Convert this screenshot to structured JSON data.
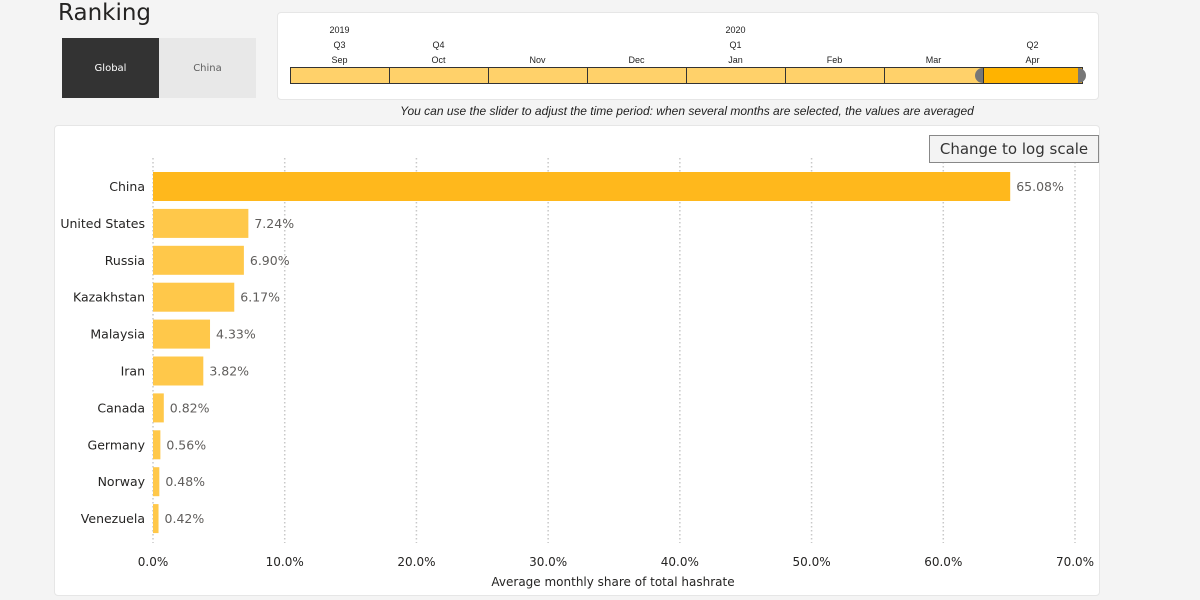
{
  "header": {
    "title": "Ranking"
  },
  "toggles": [
    {
      "label": "Global",
      "active": true
    },
    {
      "label": "China",
      "active": false
    }
  ],
  "timeline": {
    "months": [
      {
        "label": "Sep",
        "year": "2019",
        "quarter": "Q3",
        "selected": false
      },
      {
        "label": "Oct",
        "year": "",
        "quarter": "Q4",
        "selected": false
      },
      {
        "label": "Nov",
        "year": "",
        "quarter": "",
        "selected": false
      },
      {
        "label": "Dec",
        "year": "",
        "quarter": "",
        "selected": false
      },
      {
        "label": "Jan",
        "year": "2020",
        "quarter": "Q1",
        "selected": false
      },
      {
        "label": "Feb",
        "year": "",
        "quarter": "",
        "selected": false
      },
      {
        "label": "Mar",
        "year": "",
        "quarter": "",
        "selected": false
      },
      {
        "label": "Apr",
        "year": "",
        "quarter": "Q2",
        "selected": true
      }
    ],
    "caption": "You can use the slider to adjust the time period: when several months are selected, the values are averaged"
  },
  "log_button": {
    "label": "Change to log scale"
  },
  "colors": {
    "bar_top": "#ffb81c",
    "bar": "#ffc84a",
    "selected_month": "#ffb300",
    "month": "#ffd16a"
  },
  "chart_data": {
    "type": "bar",
    "orientation": "horizontal",
    "categories": [
      "China",
      "United States",
      "Russia",
      "Kazakhstan",
      "Malaysia",
      "Iran",
      "Canada",
      "Germany",
      "Norway",
      "Venezuela"
    ],
    "values": [
      65.08,
      7.24,
      6.9,
      6.17,
      4.33,
      3.82,
      0.82,
      0.56,
      0.48,
      0.42
    ],
    "value_labels": [
      "65.08%",
      "7.24%",
      "6.90%",
      "6.17%",
      "4.33%",
      "3.82%",
      "0.82%",
      "0.56%",
      "0.48%",
      "0.42%"
    ],
    "xlabel": "Average monthly share of total hashrate",
    "xlim": [
      0,
      70
    ],
    "xticks": [
      0,
      10,
      20,
      30,
      40,
      50,
      60,
      70
    ],
    "xtick_labels": [
      "0.0%",
      "10.0%",
      "20.0%",
      "30.0%",
      "40.0%",
      "50.0%",
      "60.0%",
      "70.0%"
    ],
    "grid": true,
    "scale": "linear"
  }
}
